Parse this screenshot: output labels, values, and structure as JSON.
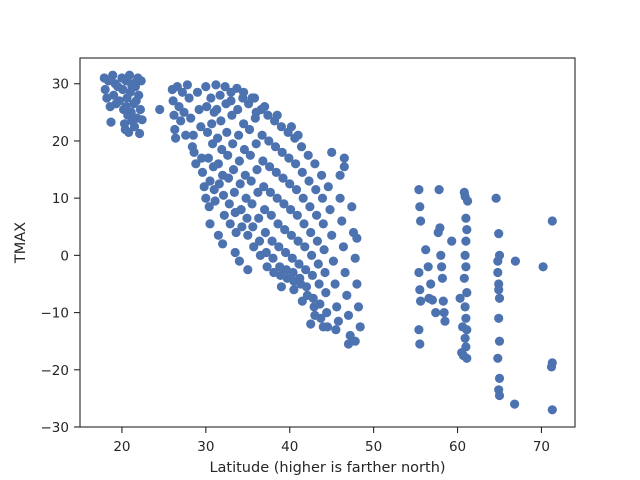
{
  "chart_data": {
    "type": "scatter",
    "title": "",
    "xlabel": "Latitude (higher is farther north)",
    "ylabel": "TMAX",
    "xlim": [
      15,
      74
    ],
    "ylim": [
      -30,
      34.5
    ],
    "xticks": [
      20,
      30,
      40,
      50,
      60,
      70
    ],
    "yticks": [
      -30,
      -20,
      -10,
      0,
      10,
      20,
      30
    ],
    "grid": false,
    "legend": "none",
    "marker_color": "#4c72b0",
    "series": [
      {
        "points": [
          [
            17.9,
            31
          ],
          [
            18.0,
            29
          ],
          [
            18.2,
            27.5
          ],
          [
            18.4,
            30.5
          ],
          [
            18.6,
            26
          ],
          [
            18.7,
            23.3
          ],
          [
            18.9,
            31.5
          ],
          [
            19.0,
            28
          ],
          [
            19.2,
            30
          ],
          [
            19.3,
            26.5
          ],
          [
            19.5,
            29.5
          ],
          [
            19.7,
            27
          ],
          [
            20.0,
            31
          ],
          [
            20.1,
            29
          ],
          [
            20.2,
            25.5
          ],
          [
            20.3,
            23
          ],
          [
            20.4,
            22
          ],
          [
            20.5,
            30.5
          ],
          [
            20.6,
            27.5
          ],
          [
            20.7,
            24.5
          ],
          [
            20.8,
            21.5
          ],
          [
            20.9,
            31.5
          ],
          [
            21.0,
            28.5
          ],
          [
            21.1,
            25
          ],
          [
            21.2,
            23.5
          ],
          [
            21.3,
            30
          ],
          [
            21.4,
            26.5
          ],
          [
            21.5,
            22.5
          ],
          [
            21.6,
            29.5
          ],
          [
            21.7,
            27
          ],
          [
            21.8,
            24
          ],
          [
            21.9,
            31
          ],
          [
            22.0,
            28
          ],
          [
            22.1,
            21.3
          ],
          [
            22.2,
            25.5
          ],
          [
            22.3,
            30.5
          ],
          [
            22.4,
            23.7
          ],
          [
            20.5,
            26
          ],
          [
            21.2,
            29.5
          ],
          [
            21.8,
            30.5
          ],
          [
            24.5,
            25.5
          ],
          [
            26.0,
            29
          ],
          [
            26.1,
            27
          ],
          [
            26.2,
            24.5
          ],
          [
            26.3,
            22
          ],
          [
            26.4,
            20.5
          ],
          [
            26.6,
            29.5
          ],
          [
            26.8,
            26
          ],
          [
            27.0,
            23.5
          ],
          [
            27.2,
            28.5
          ],
          [
            27.4,
            25
          ],
          [
            27.6,
            21
          ],
          [
            27.8,
            29.8
          ],
          [
            28.0,
            27.5
          ],
          [
            28.2,
            24
          ],
          [
            28.4,
            19
          ],
          [
            28.6,
            18
          ],
          [
            28.8,
            16
          ],
          [
            29.0,
            28.5
          ],
          [
            29.2,
            25.5
          ],
          [
            29.4,
            22.5
          ],
          [
            29.6,
            14.5
          ],
          [
            29.8,
            12
          ],
          [
            30.0,
            29.5
          ],
          [
            30.0,
            10
          ],
          [
            30.1,
            26
          ],
          [
            30.2,
            21.5
          ],
          [
            30.3,
            17
          ],
          [
            30.4,
            8.5
          ],
          [
            30.5,
            13
          ],
          [
            30.6,
            27.5
          ],
          [
            30.7,
            23
          ],
          [
            30.8,
            19.5
          ],
          [
            30.9,
            15.5
          ],
          [
            31.0,
            11.5
          ],
          [
            31.1,
            9.5
          ],
          [
            31.2,
            29.8
          ],
          [
            31.3,
            25.5
          ],
          [
            31.4,
            20.5
          ],
          [
            31.5,
            16
          ],
          [
            31.6,
            12.5
          ],
          [
            31.7,
            28
          ],
          [
            31.8,
            23.5
          ],
          [
            31.9,
            18.5
          ],
          [
            32.0,
            14
          ],
          [
            32.1,
            10.5
          ],
          [
            32.2,
            7
          ],
          [
            32.3,
            29.5
          ],
          [
            32.4,
            26.5
          ],
          [
            32.5,
            21.5
          ],
          [
            32.6,
            17.5
          ],
          [
            32.7,
            13.5
          ],
          [
            32.8,
            9
          ],
          [
            32.9,
            5.5
          ],
          [
            33.0,
            28.5
          ],
          [
            33.1,
            24.5
          ],
          [
            33.2,
            19.5
          ],
          [
            33.3,
            15
          ],
          [
            33.4,
            11
          ],
          [
            33.5,
            7.5
          ],
          [
            33.6,
            4
          ],
          [
            33.7,
            29.2
          ],
          [
            33.8,
            25.5
          ],
          [
            33.9,
            21
          ],
          [
            34.0,
            16.5
          ],
          [
            34.1,
            12.5
          ],
          [
            34.2,
            8
          ],
          [
            34.3,
            5
          ],
          [
            34.4,
            27.5
          ],
          [
            34.5,
            23
          ],
          [
            34.6,
            18.5
          ],
          [
            34.7,
            14
          ],
          [
            34.8,
            10
          ],
          [
            34.9,
            6.5
          ],
          [
            35.0,
            3.5
          ],
          [
            35.1,
            26.5
          ],
          [
            35.2,
            22
          ],
          [
            35.3,
            17.5
          ],
          [
            35.4,
            13
          ],
          [
            35.5,
            9
          ],
          [
            35.6,
            5
          ],
          [
            35.7,
            1.5
          ],
          [
            35.8,
            27.5
          ],
          [
            35.9,
            24
          ],
          [
            36.0,
            19.5
          ],
          [
            36.1,
            15
          ],
          [
            36.2,
            11
          ],
          [
            36.3,
            6.5
          ],
          [
            36.4,
            2.5
          ],
          [
            36.5,
            0
          ],
          [
            36.6,
            25.5
          ],
          [
            36.7,
            21
          ],
          [
            36.8,
            16.5
          ],
          [
            36.9,
            12
          ],
          [
            37.0,
            8
          ],
          [
            37.1,
            4
          ],
          [
            37.2,
            0.5
          ],
          [
            37.3,
            -2
          ],
          [
            37.4,
            24.5
          ],
          [
            37.5,
            20
          ],
          [
            37.6,
            15.5
          ],
          [
            37.7,
            11
          ],
          [
            37.8,
            7
          ],
          [
            37.9,
            2.5
          ],
          [
            38.0,
            -0.5
          ],
          [
            38.1,
            -3
          ],
          [
            38.2,
            23.5
          ],
          [
            38.3,
            19
          ],
          [
            38.4,
            14.5
          ],
          [
            38.5,
            10
          ],
          [
            38.6,
            5.5
          ],
          [
            38.7,
            1.5
          ],
          [
            38.8,
            -2
          ],
          [
            38.9,
            -3.5
          ],
          [
            39.0,
            22.5
          ],
          [
            39.1,
            18
          ],
          [
            39.2,
            13.5
          ],
          [
            39.3,
            9
          ],
          [
            39.4,
            4.5
          ],
          [
            39.5,
            0.5
          ],
          [
            39.6,
            -2.5
          ],
          [
            39.7,
            -4
          ],
          [
            39.8,
            21.5
          ],
          [
            39.9,
            17
          ],
          [
            40.0,
            12.5
          ],
          [
            40.1,
            8
          ],
          [
            40.2,
            3.5
          ],
          [
            40.3,
            -0.5
          ],
          [
            40.4,
            -3
          ],
          [
            40.5,
            -4.5
          ],
          [
            40.6,
            20.5
          ],
          [
            40.7,
            16
          ],
          [
            40.8,
            11.5
          ],
          [
            40.9,
            7
          ],
          [
            41.0,
            2.5
          ],
          [
            41.1,
            -1.5
          ],
          [
            41.2,
            -4
          ],
          [
            41.3,
            -5
          ],
          [
            41.4,
            19
          ],
          [
            41.5,
            14.5
          ],
          [
            41.6,
            10
          ],
          [
            41.7,
            5.5
          ],
          [
            41.8,
            1.5
          ],
          [
            41.9,
            -2.5
          ],
          [
            42.0,
            -5.5
          ],
          [
            42.1,
            -7
          ],
          [
            42.2,
            17.5
          ],
          [
            42.3,
            13
          ],
          [
            42.4,
            8.5
          ],
          [
            42.5,
            4
          ],
          [
            42.6,
            0
          ],
          [
            42.7,
            -3.5
          ],
          [
            42.8,
            -7.5
          ],
          [
            42.9,
            -9
          ],
          [
            43.0,
            16
          ],
          [
            43.1,
            11.5
          ],
          [
            43.2,
            7
          ],
          [
            43.3,
            2.5
          ],
          [
            43.4,
            -1.5
          ],
          [
            43.5,
            -5
          ],
          [
            43.6,
            -8.5
          ],
          [
            43.7,
            -11
          ],
          [
            43.8,
            14
          ],
          [
            43.9,
            10
          ],
          [
            44.0,
            5.5
          ],
          [
            44.1,
            1
          ],
          [
            44.2,
            -3
          ],
          [
            44.3,
            -6.5
          ],
          [
            44.4,
            -10
          ],
          [
            44.5,
            -12.5
          ],
          [
            44.6,
            12
          ],
          [
            44.8,
            8
          ],
          [
            45.0,
            3.5
          ],
          [
            45.2,
            -1
          ],
          [
            45.4,
            -5
          ],
          [
            45.6,
            -9
          ],
          [
            45.8,
            -11.5
          ],
          [
            46.0,
            10
          ],
          [
            46.2,
            6
          ],
          [
            46.4,
            1.5
          ],
          [
            46.6,
            -3
          ],
          [
            46.8,
            -7
          ],
          [
            47.0,
            -10.5
          ],
          [
            47.2,
            -14
          ],
          [
            47.4,
            8.5
          ],
          [
            47.6,
            4
          ],
          [
            47.8,
            -0.5
          ],
          [
            48.0,
            -5
          ],
          [
            48.2,
            -9
          ],
          [
            48.4,
            -12.5
          ],
          [
            47.8,
            -15
          ],
          [
            48.0,
            3
          ],
          [
            46.5,
            15.5
          ],
          [
            46.0,
            14
          ],
          [
            41.0,
            21
          ],
          [
            40.2,
            22.5
          ],
          [
            38.5,
            24.5
          ],
          [
            37.0,
            26
          ],
          [
            36.0,
            25
          ],
          [
            35.5,
            27.5
          ],
          [
            34.5,
            28.5
          ],
          [
            33.0,
            27
          ],
          [
            31.0,
            25
          ],
          [
            28.5,
            21
          ],
          [
            29.5,
            17
          ],
          [
            30.5,
            5.5
          ],
          [
            31.5,
            3.5
          ],
          [
            32.0,
            2
          ],
          [
            33.5,
            0.5
          ],
          [
            34.0,
            -1
          ],
          [
            35.0,
            -2.5
          ],
          [
            43.0,
            -10.5
          ],
          [
            41.5,
            -8
          ],
          [
            40.5,
            -6
          ],
          [
            39.0,
            -5.5
          ],
          [
            42.5,
            -12
          ],
          [
            44.0,
            -12.5
          ],
          [
            45.5,
            -13
          ],
          [
            47.0,
            -15.5
          ],
          [
            46.5,
            17
          ],
          [
            45.0,
            18
          ],
          [
            55.4,
            11.5
          ],
          [
            55.5,
            8.5
          ],
          [
            55.6,
            6
          ],
          [
            55.4,
            -3
          ],
          [
            55.5,
            -6
          ],
          [
            55.6,
            -8
          ],
          [
            55.4,
            -13
          ],
          [
            55.5,
            -15.5
          ],
          [
            56.2,
            1
          ],
          [
            56.5,
            -2
          ],
          [
            56.6,
            -7.5
          ],
          [
            56.8,
            -5
          ],
          [
            57.0,
            -7.8
          ],
          [
            57.4,
            -10
          ],
          [
            57.8,
            11.5
          ],
          [
            57.7,
            4
          ],
          [
            57.9,
            4.8
          ],
          [
            58.0,
            0
          ],
          [
            58.1,
            -2
          ],
          [
            58.2,
            -4
          ],
          [
            58.3,
            -8
          ],
          [
            58.4,
            -10
          ],
          [
            58.5,
            -11.5
          ],
          [
            59.3,
            2.5
          ],
          [
            60.3,
            -7.5
          ],
          [
            60.5,
            -17
          ],
          [
            60.6,
            -12.5
          ],
          [
            60.8,
            11
          ],
          [
            60.9,
            10.3
          ],
          [
            61.0,
            6.5
          ],
          [
            61.1,
            4.5
          ],
          [
            61.0,
            2.5
          ],
          [
            60.9,
            0
          ],
          [
            61.0,
            -2
          ],
          [
            60.8,
            -4
          ],
          [
            61.1,
            -6.5
          ],
          [
            60.9,
            -9
          ],
          [
            61.0,
            -11
          ],
          [
            61.1,
            -13
          ],
          [
            60.9,
            -14.5
          ],
          [
            61.0,
            -16
          ],
          [
            61.1,
            -18
          ],
          [
            60.7,
            -17.5
          ],
          [
            61.2,
            9.5
          ],
          [
            64.6,
            10
          ],
          [
            64.8,
            -3
          ],
          [
            64.9,
            -6
          ],
          [
            64.8,
            -1
          ],
          [
            64.9,
            3.8
          ],
          [
            65.0,
            0
          ],
          [
            64.9,
            -5
          ],
          [
            65.0,
            -7.5
          ],
          [
            64.9,
            -11
          ],
          [
            65.0,
            -15
          ],
          [
            64.8,
            -18
          ],
          [
            65.0,
            -21.5
          ],
          [
            64.9,
            -23.5
          ],
          [
            65.0,
            -24.5
          ],
          [
            66.9,
            -1
          ],
          [
            66.8,
            -26
          ],
          [
            70.2,
            -2
          ],
          [
            71.3,
            6
          ],
          [
            71.3,
            -18.8
          ],
          [
            71.2,
            -19.5
          ],
          [
            71.3,
            -27
          ]
        ]
      }
    ]
  }
}
